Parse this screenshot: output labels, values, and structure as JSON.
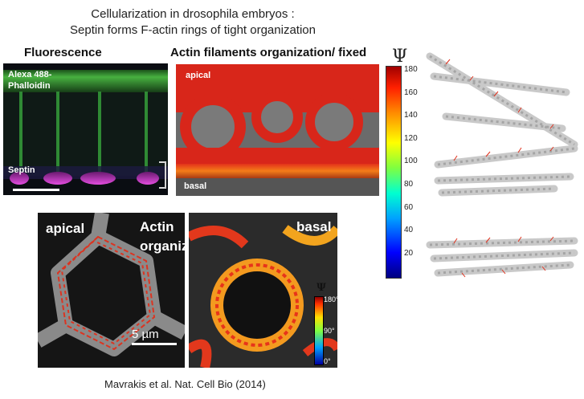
{
  "title": {
    "line1": "Cellularization in drosophila embryos :",
    "line2": "Septin forms F-actin rings of tight organization"
  },
  "fluorescence_panel": {
    "header": "Fluorescence",
    "stain_label_line1": "Alexa 488-",
    "stain_label_line2": "Phalloidin",
    "septin_label": "Septin"
  },
  "actin_panel": {
    "header": "Actin filaments organization/ fixed",
    "top_label": "apical",
    "bottom_label": "basal"
  },
  "colorbar_main": {
    "symbol": "Ψ",
    "ticks": [
      "180",
      "160",
      "140",
      "120",
      "100",
      "80",
      "60",
      "40",
      "20"
    ]
  },
  "bottom_left_panel": {
    "apical_label": "apical",
    "actin_label_line1": "Actin",
    "actin_label_line2": "organization",
    "scale_label": "5 µm"
  },
  "bottom_right_panel": {
    "basal_label": "basal",
    "colorbar_symbol": "Ψ",
    "colorbar_ticks": [
      "180°",
      "90°",
      "0°"
    ]
  },
  "citation": "Mavrakis et al. Nat. Cell Bio (2014)",
  "colors": {
    "green": "#3fb53a",
    "magenta": "#d23ad0",
    "red": "#e52a10",
    "orange": "#f7a21b"
  }
}
